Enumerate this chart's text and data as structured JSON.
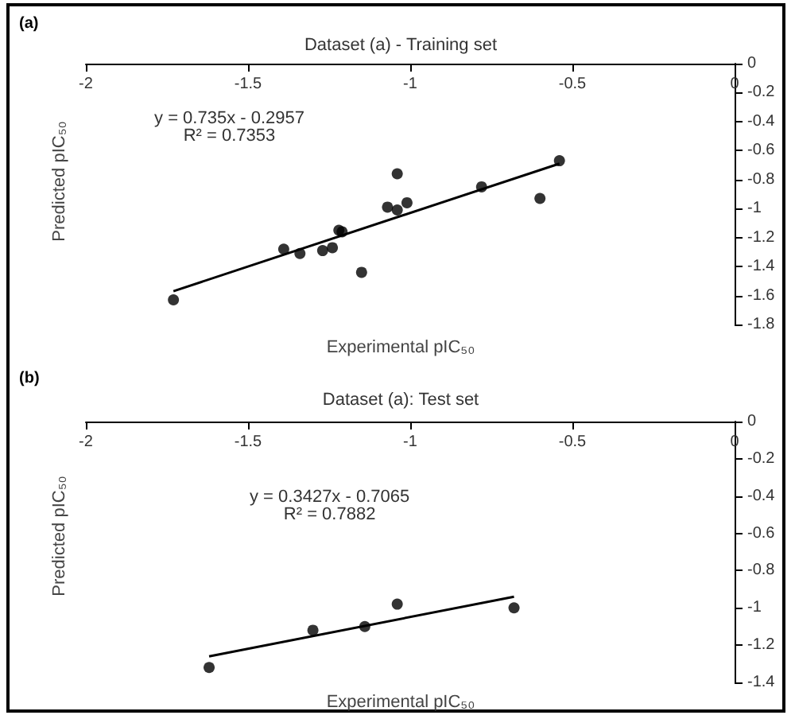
{
  "chart_data": [
    {
      "type": "scatter",
      "title": "Dataset (a) - Training set",
      "xlabel": "Experimental pIC₅₀",
      "ylabel": "Predicted pIC₅₀",
      "annotations": [
        "(a)",
        "y = 0.735x - 0.2957\nR² = 0.7353"
      ],
      "xlim": [
        -2,
        0
      ],
      "xticks": [
        -2,
        -1.5,
        -1,
        -0.5,
        0
      ],
      "ylim": [
        -1.8,
        0
      ],
      "yticks": [
        0,
        -0.2,
        -0.4,
        -0.6,
        -0.8,
        -1,
        -1.2,
        -1.4,
        -1.6,
        -1.8
      ],
      "grid": false,
      "marker": "circle",
      "series": [
        {
          "color": "#000000",
          "x": [
            -1.73,
            -1.39,
            -1.34,
            -1.27,
            -1.24,
            -1.22,
            -1.21,
            -1.15,
            -1.07,
            -1.04,
            -1.04,
            -1.01,
            -0.78,
            -0.6,
            -0.54
          ],
          "values": [
            -1.63,
            -1.28,
            -1.31,
            -1.29,
            -1.27,
            -1.15,
            -1.16,
            -1.44,
            -0.99,
            -1.01,
            -0.76,
            -0.96,
            -0.85,
            -0.93,
            -0.67
          ]
        },
        {
          "type": "line",
          "color": "#000000",
          "marker": "none",
          "line_style": "solid",
          "x": [
            -1.73,
            -0.54
          ],
          "values": [
            -1.57,
            -0.69
          ]
        }
      ]
    },
    {
      "type": "scatter",
      "title": "Dataset (a): Test set",
      "xlabel": "Experimental pIC₅₀",
      "ylabel": "Predicted pIC₅₀",
      "annotations": [
        "(b)",
        "y = 0.3427x - 0.7065\nR² = 0.7882"
      ],
      "xlim": [
        -2,
        0
      ],
      "xticks": [
        -2,
        -1.5,
        -1,
        -0.5,
        0
      ],
      "ylim": [
        -1.4,
        0
      ],
      "yticks": [
        0,
        -0.2,
        -0.4,
        -0.6,
        -0.8,
        -1,
        -1.2,
        -1.4
      ],
      "grid": false,
      "marker": "circle",
      "series": [
        {
          "color": "#000000",
          "x": [
            -1.62,
            -1.3,
            -1.14,
            -1.04,
            -0.68
          ],
          "values": [
            -1.32,
            -1.12,
            -1.1,
            -0.98,
            -1.0
          ]
        },
        {
          "type": "line",
          "color": "#000000",
          "marker": "none",
          "line_style": "solid",
          "x": [
            -1.62,
            -0.68
          ],
          "values": [
            -1.26,
            -0.94
          ]
        }
      ]
    }
  ]
}
